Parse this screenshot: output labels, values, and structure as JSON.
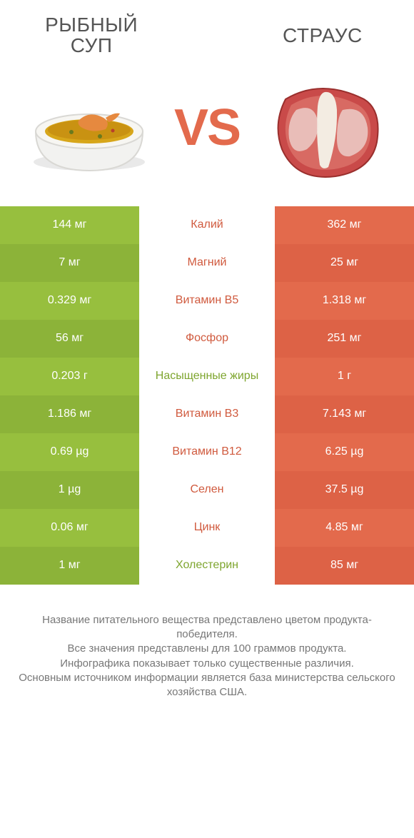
{
  "header": {
    "left_title": "РЫБНЫЙ СУП",
    "right_title": "СТРАУС",
    "vs": "VS"
  },
  "colors": {
    "left_cell_main": "#97bf3e",
    "left_cell_alt": "#8cb339",
    "right_cell_main": "#e36a4c",
    "right_cell_alt": "#dd6246",
    "mid_green": "#7ea52e",
    "mid_orange": "#d05a3e",
    "vs_color": "#e36a4c",
    "title_color": "#555555",
    "footer_color": "#777777",
    "background": "#ffffff"
  },
  "rows": [
    {
      "left": "144 мг",
      "label": "Калий",
      "right": "362 мг",
      "winner": "right"
    },
    {
      "left": "7 мг",
      "label": "Магний",
      "right": "25 мг",
      "winner": "right"
    },
    {
      "left": "0.329 мг",
      "label": "Витамин B5",
      "right": "1.318 мг",
      "winner": "right"
    },
    {
      "left": "56 мг",
      "label": "Фосфор",
      "right": "251 мг",
      "winner": "right"
    },
    {
      "left": "0.203 г",
      "label": "Насыщенные жиры",
      "right": "1 г",
      "winner": "left"
    },
    {
      "left": "1.186 мг",
      "label": "Витамин B3",
      "right": "7.143 мг",
      "winner": "right"
    },
    {
      "left": "0.69 µg",
      "label": "Витамин B12",
      "right": "6.25 µg",
      "winner": "right"
    },
    {
      "left": "1 µg",
      "label": "Селен",
      "right": "37.5 µg",
      "winner": "right"
    },
    {
      "left": "0.06 мг",
      "label": "Цинк",
      "right": "4.85 мг",
      "winner": "right"
    },
    {
      "left": "1 мг",
      "label": "Холестерин",
      "right": "85 мг",
      "winner": "left"
    }
  ],
  "footer": {
    "line1": "Название питательного вещества представлено цветом продукта-победителя.",
    "line2": "Все значения представлены для 100 граммов продукта.",
    "line3": "Инфографика показывает только существенные различия.",
    "line4": "Основным источником информации является база министерства сельского хозяйства США."
  }
}
